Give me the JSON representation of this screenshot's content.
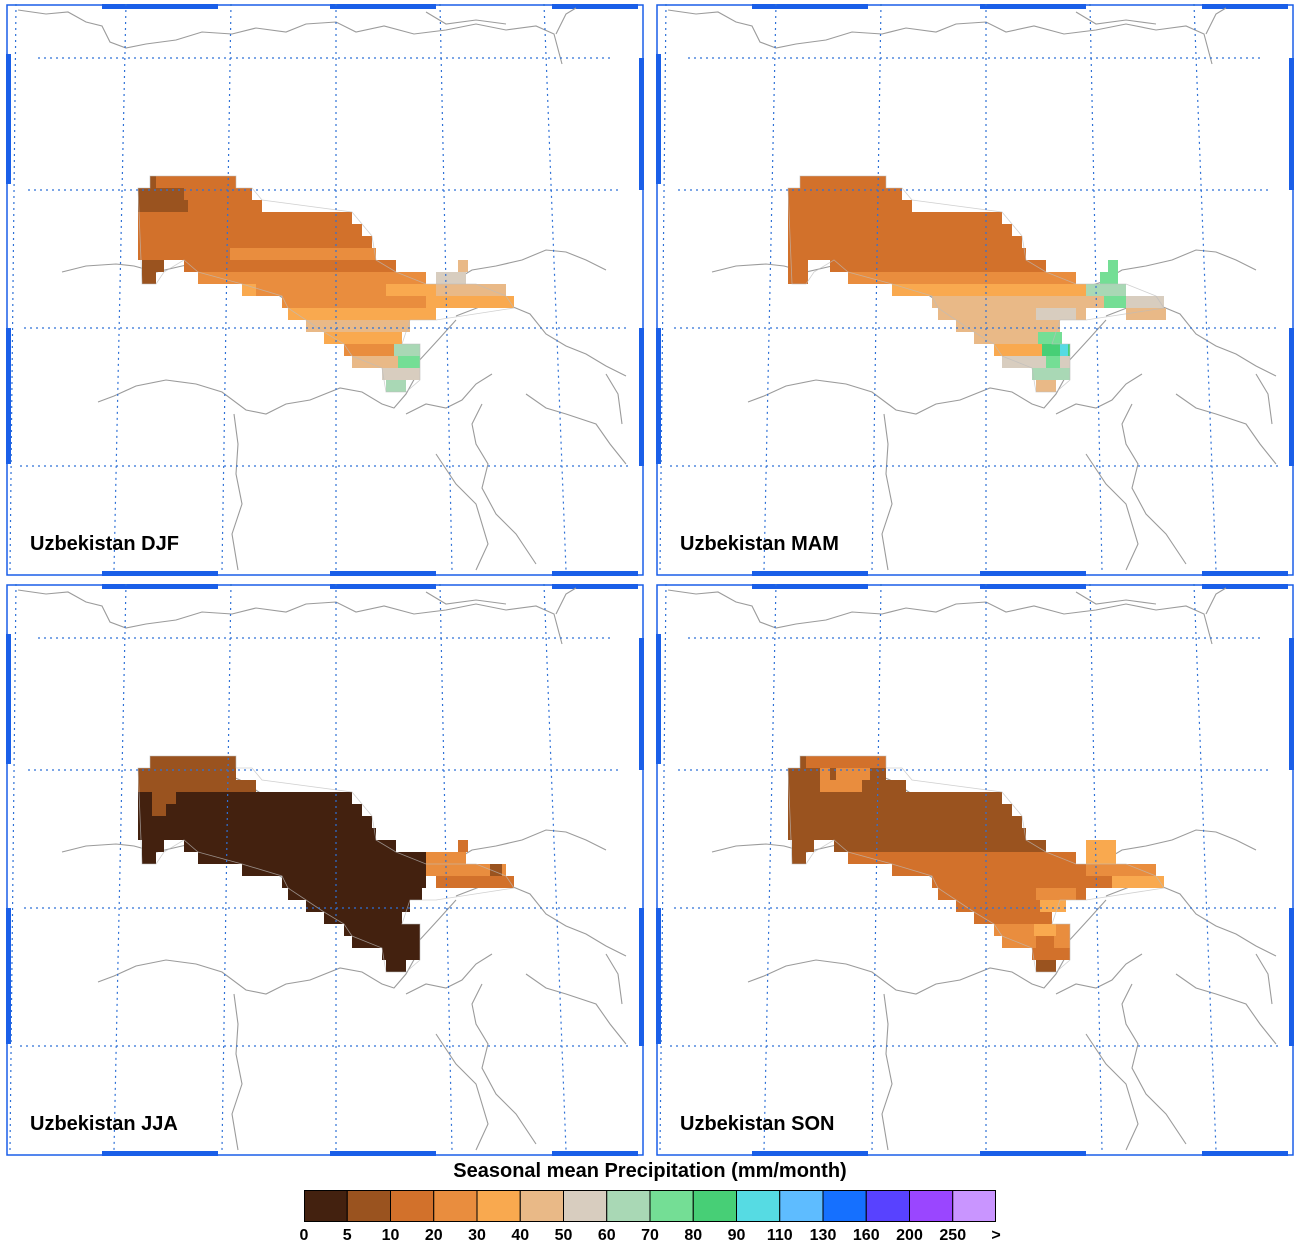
{
  "colors": {
    "bins": [
      "#43210f",
      "#9a531f",
      "#d2712b",
      "#e98d3e",
      "#f9a94f",
      "#e9b987",
      "#d8cdbf",
      "#a9d8b5",
      "#74de95",
      "#47cf76",
      "#56dbe3",
      "#5ebcff",
      "#1570ff",
      "#5842ff",
      "#9a46ff",
      "#c995ff"
    ],
    "frame": "#1a5fe8",
    "gridlines": "#2f71d6",
    "borders": "#9b9b9b"
  },
  "panels": [
    {
      "title": "Uzbekistan DJF",
      "season": "DJF"
    },
    {
      "title": "Uzbekistan MAM",
      "season": "MAM"
    },
    {
      "title": "Uzbekistan JJA",
      "season": "JJA"
    },
    {
      "title": "Uzbekistan SON",
      "season": "SON"
    }
  ],
  "colorbar": {
    "title": "Seasonal mean Precipitation (mm/month)",
    "labels": [
      "0",
      "5",
      "10",
      "20",
      "30",
      "40",
      "50",
      "60",
      "70",
      "80",
      "90",
      "110",
      "130",
      "160",
      "200",
      "250",
      ">"
    ]
  }
}
